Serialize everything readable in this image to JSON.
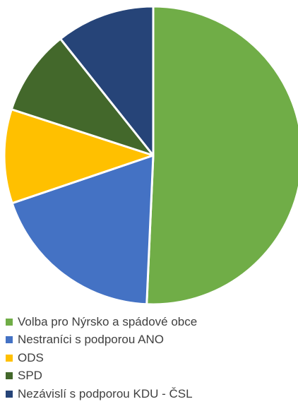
{
  "chart_data": {
    "type": "pie",
    "title": "",
    "start_angle_deg": 0,
    "direction": "clockwise",
    "slices": [
      {
        "label": "Volba pro Nýrsko a spádové obce",
        "value": 50.7,
        "color": "#70AD47"
      },
      {
        "label": "Nestraníci s podporou ANO",
        "value": 19.1,
        "color": "#4472C4"
      },
      {
        "label": "ODS",
        "value": 10.2,
        "color": "#FFC000"
      },
      {
        "label": "SPD",
        "value": 9.3,
        "color": "#43682B"
      },
      {
        "label": "Nezávislí s podporou KDU - ČSL",
        "value": 10.7,
        "color": "#264478"
      }
    ],
    "legend_position": "bottom"
  }
}
